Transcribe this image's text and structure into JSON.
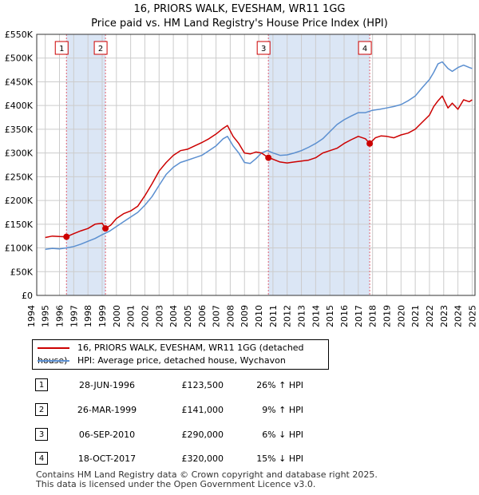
{
  "header": {
    "title_line1": "16, PRIORS WALK, EVESHAM, WR11 1GG",
    "title_line2": "Price paid vs. HM Land Registry's House Price Index (HPI)"
  },
  "colors": {
    "property": "#cc0000",
    "hpi": "#5b8fd0",
    "shade": "#dbe6f5",
    "grid": "#cccccc",
    "marker_line": "#e06070"
  },
  "chart_data": {
    "type": "line",
    "title": "16, PRIORS WALK, EVESHAM, WR11 1GG — Price paid vs. HM Land Registry's House Price Index (HPI)",
    "xlim": [
      1994.4,
      2025.2
    ],
    "ylim": [
      0,
      550000
    ],
    "ytick_values": [
      0,
      50000,
      100000,
      150000,
      200000,
      250000,
      300000,
      350000,
      400000,
      450000,
      500000,
      550000
    ],
    "ytick_labels": [
      "£0",
      "£50K",
      "£100K",
      "£150K",
      "£200K",
      "£250K",
      "£300K",
      "£350K",
      "£400K",
      "£450K",
      "£500K",
      "£550K"
    ],
    "xtick_values": [
      1994,
      1995,
      1996,
      1997,
      1998,
      1999,
      2000,
      2001,
      2002,
      2003,
      2004,
      2005,
      2006,
      2007,
      2008,
      2009,
      2010,
      2011,
      2012,
      2013,
      2014,
      2015,
      2016,
      2017,
      2018,
      2019,
      2020,
      2021,
      2022,
      2023,
      2024,
      2025
    ],
    "xtick_labels": [
      "1994",
      "1995",
      "1996",
      "1997",
      "1998",
      "1999",
      "2000",
      "2001",
      "2002",
      "2003",
      "2004",
      "2005",
      "2006",
      "2007",
      "2008",
      "2009",
      "2010",
      "2011",
      "2012",
      "2013",
      "2014",
      "2015",
      "2016",
      "2017",
      "2018",
      "2019",
      "2020",
      "2021",
      "2022",
      "2023",
      "2024",
      "2025"
    ],
    "shaded_periods": [
      [
        1996.49,
        1999.23
      ],
      [
        2010.68,
        2017.8
      ]
    ],
    "series": [
      {
        "name": "16, PRIORS WALK, EVESHAM, WR11 1GG (detached house)",
        "color": "#cc0000",
        "x": [
          1995.0,
          1995.5,
          1996.0,
          1996.49,
          1997.0,
          1997.5,
          1998.0,
          1998.5,
          1999.0,
          1999.23,
          1999.6,
          2000.0,
          2000.5,
          2001.0,
          2001.5,
          2002.0,
          2002.5,
          2003.0,
          2003.5,
          2004.0,
          2004.5,
          2005.0,
          2005.5,
          2006.0,
          2006.5,
          2007.0,
          2007.5,
          2007.8,
          2008.2,
          2008.6,
          2009.0,
          2009.4,
          2009.8,
          2010.2,
          2010.68,
          2011.0,
          2011.5,
          2012.0,
          2012.5,
          2013.0,
          2013.5,
          2014.0,
          2014.5,
          2015.0,
          2015.5,
          2016.0,
          2016.5,
          2017.0,
          2017.5,
          2017.8,
          2018.2,
          2018.6,
          2019.0,
          2019.5,
          2020.0,
          2020.5,
          2021.0,
          2021.5,
          2022.0,
          2022.3,
          2022.6,
          2022.9,
          2023.3,
          2023.6,
          2024.0,
          2024.4,
          2024.8,
          2025.0
        ],
        "y": [
          122000,
          125000,
          124000,
          123500,
          130000,
          136000,
          141000,
          150000,
          152000,
          141000,
          148000,
          162000,
          172000,
          178000,
          188000,
          210000,
          235000,
          262000,
          280000,
          295000,
          305000,
          308000,
          315000,
          322000,
          330000,
          340000,
          352000,
          358000,
          335000,
          320000,
          300000,
          298000,
          302000,
          300000,
          290000,
          287000,
          281000,
          279000,
          281000,
          283000,
          285000,
          290000,
          300000,
          305000,
          310000,
          320000,
          328000,
          335000,
          330000,
          320000,
          332000,
          336000,
          335000,
          332000,
          338000,
          342000,
          350000,
          365000,
          380000,
          398000,
          410000,
          420000,
          395000,
          405000,
          392000,
          412000,
          408000,
          412000
        ]
      },
      {
        "name": "HPI: Average price, detached house, Wychavon",
        "color": "#5b8fd0",
        "x": [
          1995.0,
          1995.5,
          1996.0,
          1996.5,
          1997.0,
          1997.5,
          1998.0,
          1998.5,
          1999.0,
          1999.5,
          2000.0,
          2000.5,
          2001.0,
          2001.5,
          2002.0,
          2002.5,
          2003.0,
          2003.5,
          2004.0,
          2004.5,
          2005.0,
          2005.5,
          2006.0,
          2006.5,
          2007.0,
          2007.5,
          2007.8,
          2008.2,
          2008.6,
          2009.0,
          2009.4,
          2009.8,
          2010.2,
          2010.6,
          2011.0,
          2011.5,
          2012.0,
          2012.5,
          2013.0,
          2013.5,
          2014.0,
          2014.5,
          2015.0,
          2015.5,
          2016.0,
          2016.5,
          2017.0,
          2017.5,
          2018.0,
          2018.5,
          2019.0,
          2019.5,
          2020.0,
          2020.5,
          2021.0,
          2021.5,
          2022.0,
          2022.3,
          2022.6,
          2022.9,
          2023.3,
          2023.6,
          2024.0,
          2024.4,
          2024.8,
          2025.0
        ],
        "y": [
          97000,
          99000,
          98000,
          100000,
          103000,
          108000,
          114000,
          120000,
          128000,
          135000,
          145000,
          155000,
          165000,
          175000,
          190000,
          208000,
          232000,
          255000,
          270000,
          280000,
          285000,
          290000,
          295000,
          305000,
          315000,
          330000,
          335000,
          315000,
          300000,
          280000,
          278000,
          288000,
          300000,
          305000,
          300000,
          295000,
          296000,
          300000,
          305000,
          312000,
          320000,
          330000,
          345000,
          360000,
          370000,
          378000,
          385000,
          385000,
          390000,
          392000,
          395000,
          398000,
          402000,
          410000,
          420000,
          438000,
          455000,
          470000,
          488000,
          492000,
          478000,
          472000,
          480000,
          485000,
          480000,
          478000
        ]
      }
    ],
    "sales": [
      {
        "label": "1",
        "date": "28-JUN-1996",
        "x": 1996.49,
        "price": 123500,
        "hpi_diff": "26% ↑ HPI",
        "price_label": "£123,500"
      },
      {
        "label": "2",
        "date": "26-MAR-1999",
        "x": 1999.23,
        "price": 141000,
        "hpi_diff": "9% ↑ HPI",
        "price_label": "£141,000"
      },
      {
        "label": "3",
        "date": "06-SEP-2010",
        "x": 2010.68,
        "price": 290000,
        "hpi_diff": "6% ↓ HPI",
        "price_label": "£290,000"
      },
      {
        "label": "4",
        "date": "18-OCT-2017",
        "x": 2017.8,
        "price": 320000,
        "hpi_diff": "15% ↓ HPI",
        "price_label": "£320,000"
      }
    ]
  },
  "legend": {
    "property_label": "16, PRIORS WALK, EVESHAM, WR11 1GG (detached house)",
    "hpi_label": "HPI: Average price, detached house, Wychavon"
  },
  "transactions": [
    {
      "num": "1",
      "date": "28-JUN-1996",
      "price": "£123,500",
      "hpi": "26% ↑ HPI"
    },
    {
      "num": "2",
      "date": "26-MAR-1999",
      "price": "£141,000",
      "hpi": "9% ↑ HPI"
    },
    {
      "num": "3",
      "date": "06-SEP-2010",
      "price": "£290,000",
      "hpi": "6% ↓ HPI"
    },
    {
      "num": "4",
      "date": "18-OCT-2017",
      "price": "£320,000",
      "hpi": "15% ↓ HPI"
    }
  ],
  "footer": {
    "line1": "Contains HM Land Registry data © Crown copyright and database right 2025.",
    "line2": "This data is licensed under the Open Government Licence v3.0."
  }
}
